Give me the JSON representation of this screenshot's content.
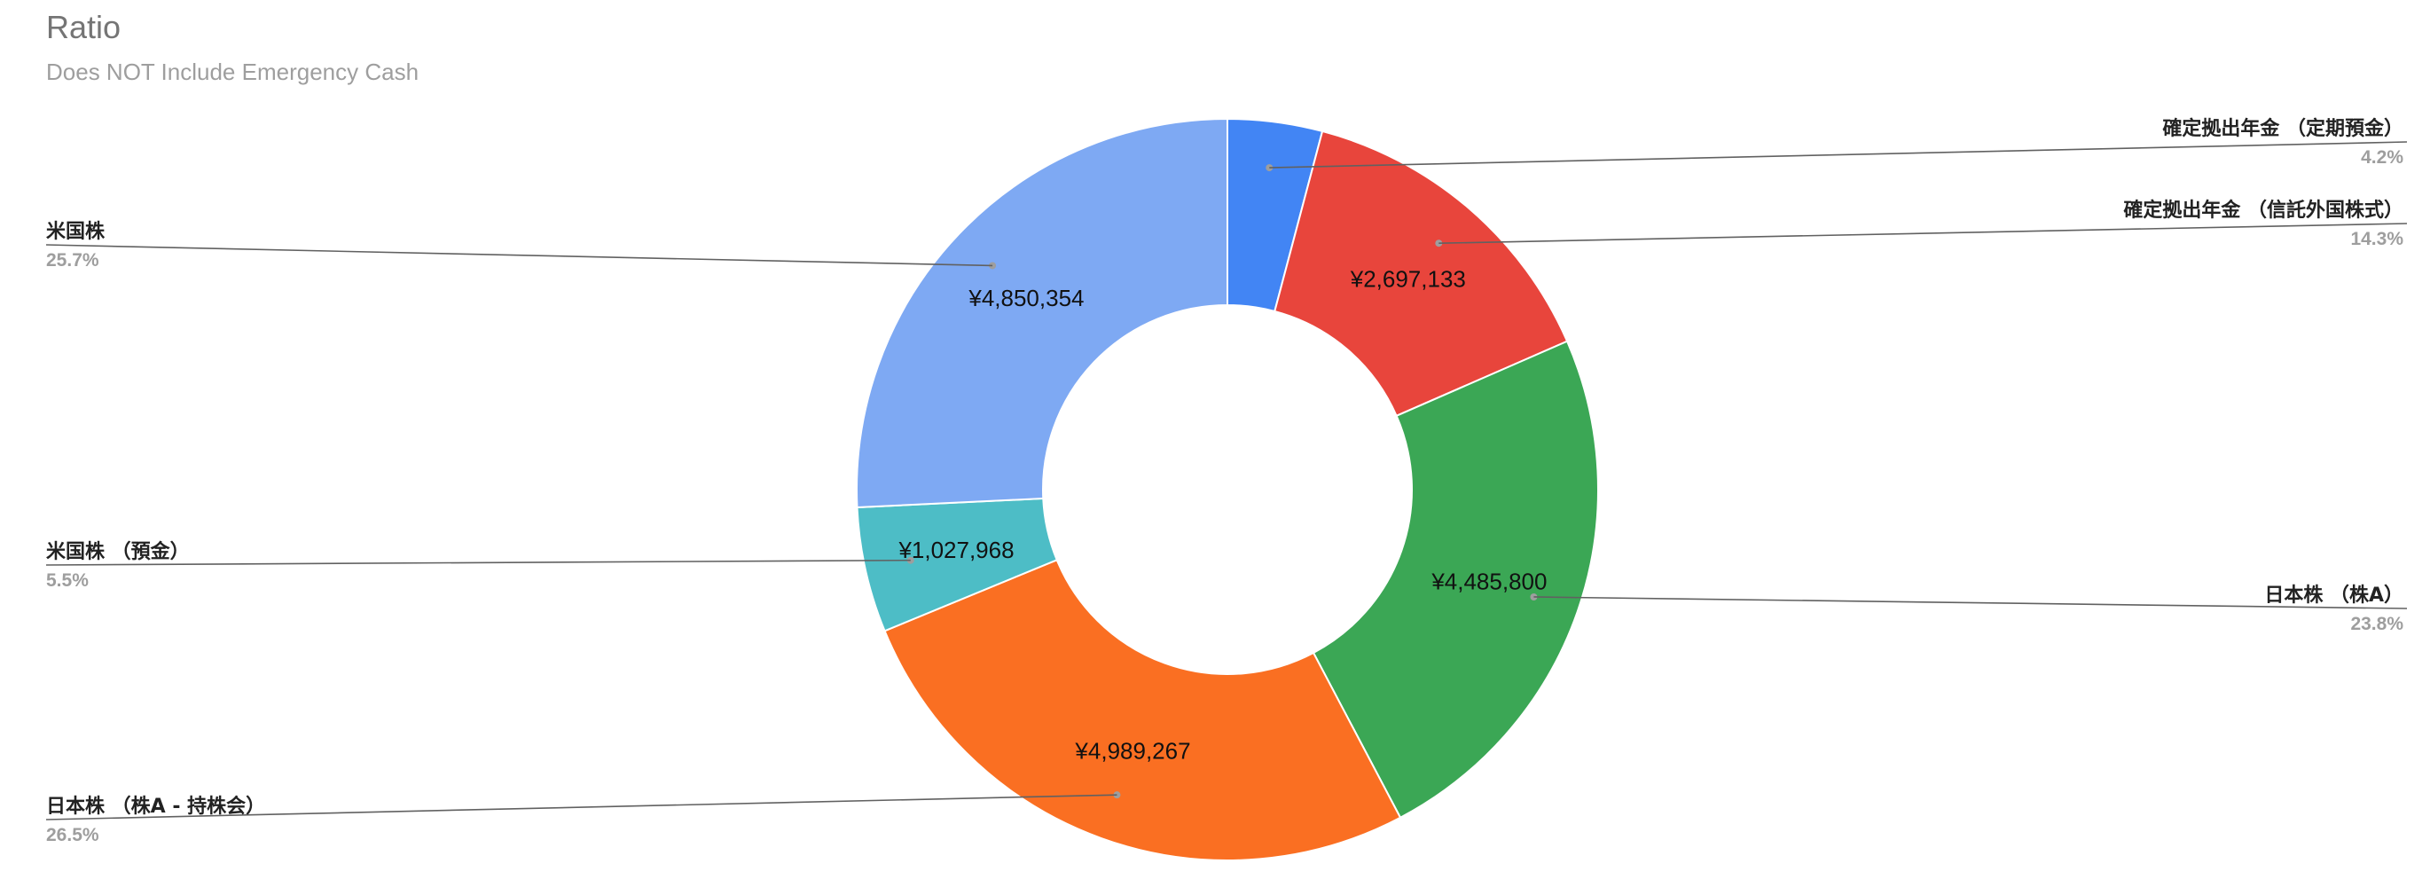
{
  "header": {
    "title": "Ratio",
    "subtitle": "Does NOT Include Emergency Cash"
  },
  "chart_data": {
    "type": "pie",
    "variant": "donut",
    "title": "Ratio",
    "subtitle": "Does NOT Include Emergency Cash",
    "legend_placement": "labeled-callouts",
    "slices": [
      {
        "label": "確定拠出年金 （定期預金）",
        "value": 776100,
        "value_label": "",
        "percent_label": "4.2%",
        "color": "#4285f4",
        "side": "right"
      },
      {
        "label": "確定拠出年金 （信託外国株式）",
        "value": 2697133,
        "value_label": "¥2,697,133",
        "percent_label": "14.3%",
        "color": "#e8453c",
        "side": "right"
      },
      {
        "label": "日本株 （株A）",
        "value": 4485800,
        "value_label": "¥4,485,800",
        "percent_label": "23.8%",
        "color": "#3ba755",
        "side": "right"
      },
      {
        "label": "日本株 （株A - 持株会）",
        "value": 4989267,
        "value_label": "¥4,989,267",
        "percent_label": "26.5%",
        "color": "#fa6f22",
        "side": "left"
      },
      {
        "label": "米国株 （預金）",
        "value": 1027968,
        "value_label": "¥1,027,968",
        "percent_label": "5.5%",
        "color": "#4dbdc6",
        "side": "left"
      },
      {
        "label": "米国株",
        "value": 4850354,
        "value_label": "¥4,850,354",
        "percent_label": "25.7%",
        "color": "#7ea9f3",
        "side": "left"
      }
    ]
  }
}
